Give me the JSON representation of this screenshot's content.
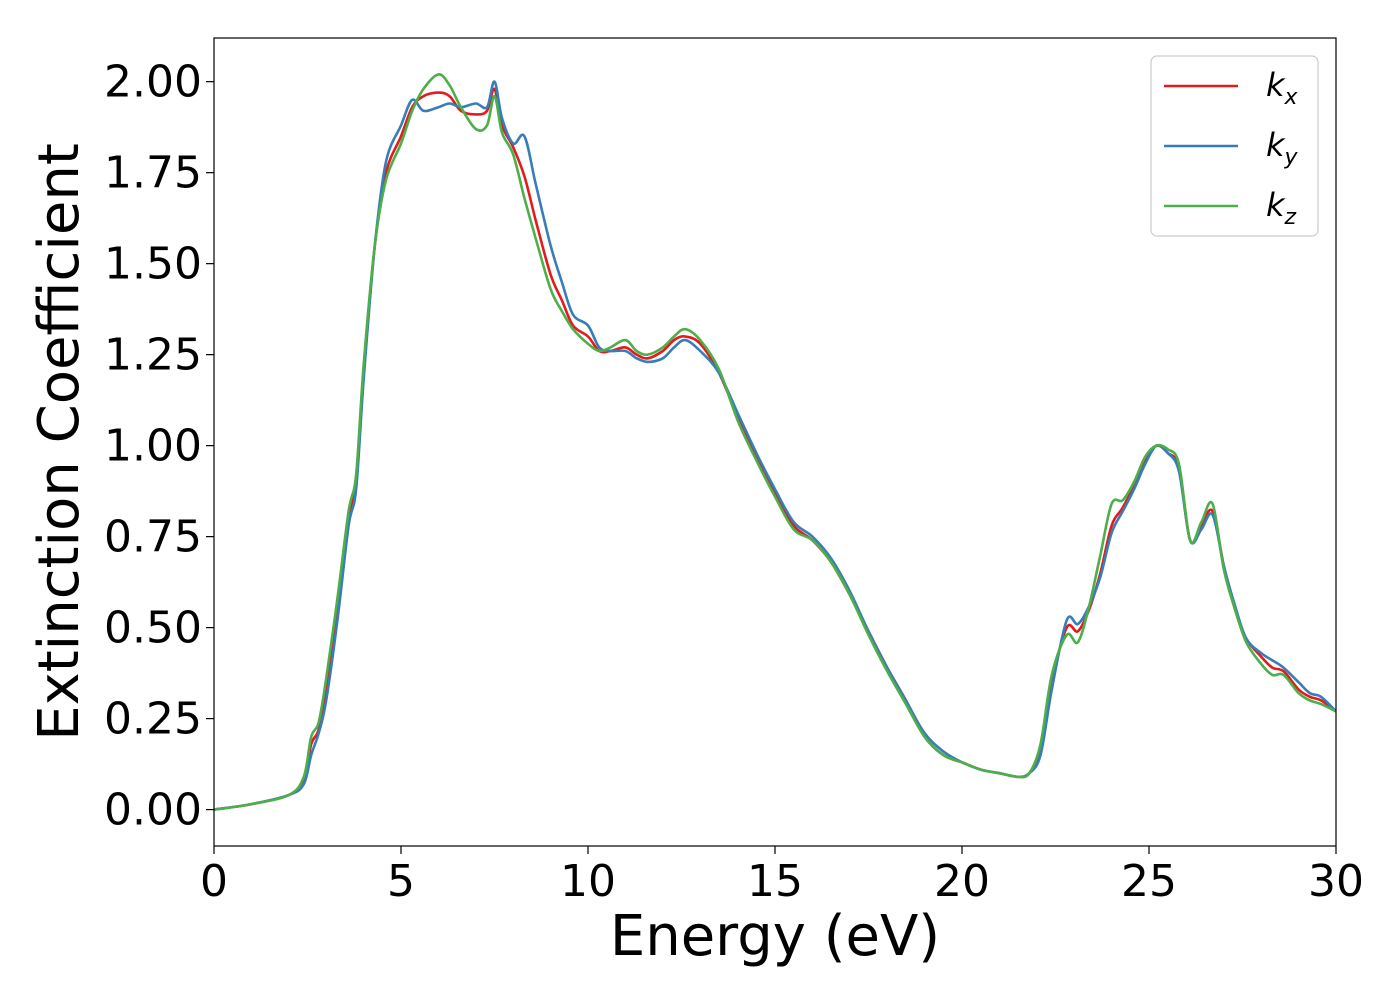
{
  "chart_data": {
    "type": "line",
    "xlabel": "Energy (eV)",
    "ylabel": "Extinction Coefficient",
    "xlim": [
      0,
      30
    ],
    "ylim": [
      -0.1,
      2.12
    ],
    "xticks": [
      "0",
      "5",
      "10",
      "15",
      "20",
      "25",
      "30"
    ],
    "yticks": [
      "0.00",
      "0.25",
      "0.50",
      "0.75",
      "1.00",
      "1.25",
      "1.50",
      "1.75",
      "2.00"
    ],
    "legend_position": "top-right",
    "grid": false,
    "series": [
      {
        "name": "k_x",
        "label_main": "k",
        "label_sub": "x",
        "color": "#e41a1c",
        "x": [
          0,
          1,
          2,
          2.4,
          2.6,
          2.8,
          3.0,
          3.3,
          3.6,
          3.8,
          4.0,
          4.3,
          4.6,
          5.0,
          5.3,
          5.6,
          6.0,
          6.3,
          6.6,
          7.0,
          7.3,
          7.5,
          7.7,
          8.0,
          8.3,
          8.6,
          9.0,
          9.3,
          9.6,
          10.0,
          10.3,
          10.6,
          11.0,
          11.3,
          11.6,
          12.0,
          12.3,
          12.6,
          13.0,
          13.5,
          14.0,
          14.5,
          15.0,
          15.5,
          16.0,
          16.5,
          17.0,
          17.5,
          18.0,
          18.5,
          19.0,
          19.5,
          20.0,
          20.5,
          21.0,
          21.5,
          21.8,
          22.1,
          22.4,
          22.8,
          23.1,
          23.4,
          23.7,
          24.0,
          24.3,
          24.6,
          24.9,
          25.2,
          25.5,
          25.8,
          26.1,
          26.4,
          26.7,
          27.0,
          27.3,
          27.6,
          28.0,
          28.3,
          28.6,
          29.0,
          29.3,
          29.6,
          30.0
        ],
        "y": [
          0.0,
          0.015,
          0.04,
          0.08,
          0.18,
          0.22,
          0.33,
          0.55,
          0.8,
          0.9,
          1.2,
          1.55,
          1.75,
          1.85,
          1.93,
          1.96,
          1.97,
          1.96,
          1.92,
          1.91,
          1.92,
          1.98,
          1.88,
          1.82,
          1.74,
          1.62,
          1.47,
          1.4,
          1.33,
          1.3,
          1.26,
          1.26,
          1.27,
          1.25,
          1.24,
          1.26,
          1.29,
          1.3,
          1.28,
          1.2,
          1.08,
          0.97,
          0.87,
          0.78,
          0.74,
          0.68,
          0.59,
          0.49,
          0.39,
          0.3,
          0.2,
          0.15,
          0.13,
          0.11,
          0.1,
          0.09,
          0.1,
          0.17,
          0.35,
          0.5,
          0.49,
          0.55,
          0.65,
          0.78,
          0.83,
          0.89,
          0.96,
          1.0,
          0.98,
          0.94,
          0.74,
          0.78,
          0.82,
          0.67,
          0.55,
          0.47,
          0.42,
          0.39,
          0.38,
          0.33,
          0.31,
          0.3,
          0.27
        ]
      },
      {
        "name": "k_y",
        "label_main": "k",
        "label_sub": "y",
        "color": "#377eb8",
        "x": [
          0,
          1,
          2,
          2.4,
          2.6,
          2.8,
          3.0,
          3.3,
          3.6,
          3.8,
          4.0,
          4.3,
          4.6,
          5.0,
          5.3,
          5.6,
          6.0,
          6.3,
          6.6,
          7.0,
          7.3,
          7.5,
          7.7,
          8.0,
          8.3,
          8.6,
          9.0,
          9.3,
          9.6,
          10.0,
          10.3,
          10.6,
          11.0,
          11.3,
          11.6,
          12.0,
          12.3,
          12.6,
          13.0,
          13.5,
          14.0,
          14.5,
          15.0,
          15.5,
          16.0,
          16.5,
          17.0,
          17.5,
          18.0,
          18.5,
          19.0,
          19.5,
          20.0,
          20.5,
          21.0,
          21.5,
          21.8,
          22.1,
          22.4,
          22.8,
          23.1,
          23.4,
          23.7,
          24.0,
          24.3,
          24.6,
          24.9,
          25.2,
          25.5,
          25.8,
          26.1,
          26.4,
          26.7,
          27.0,
          27.3,
          27.6,
          28.0,
          28.3,
          28.6,
          29.0,
          29.3,
          29.6,
          30.0
        ],
        "y": [
          0.0,
          0.015,
          0.04,
          0.07,
          0.15,
          0.21,
          0.3,
          0.52,
          0.78,
          0.88,
          1.18,
          1.55,
          1.78,
          1.88,
          1.95,
          1.92,
          1.93,
          1.94,
          1.93,
          1.94,
          1.93,
          2.0,
          1.9,
          1.83,
          1.85,
          1.72,
          1.55,
          1.45,
          1.36,
          1.33,
          1.27,
          1.26,
          1.26,
          1.24,
          1.23,
          1.24,
          1.27,
          1.29,
          1.26,
          1.2,
          1.09,
          0.98,
          0.88,
          0.79,
          0.75,
          0.69,
          0.6,
          0.49,
          0.39,
          0.3,
          0.21,
          0.16,
          0.13,
          0.11,
          0.1,
          0.09,
          0.1,
          0.15,
          0.33,
          0.52,
          0.51,
          0.56,
          0.64,
          0.76,
          0.82,
          0.88,
          0.95,
          1.0,
          0.98,
          0.93,
          0.74,
          0.77,
          0.81,
          0.67,
          0.56,
          0.47,
          0.43,
          0.41,
          0.39,
          0.35,
          0.32,
          0.31,
          0.27
        ]
      },
      {
        "name": "k_z",
        "label_main": "k",
        "label_sub": "z",
        "color": "#4daf4a",
        "x": [
          0,
          1,
          2,
          2.4,
          2.6,
          2.8,
          3.0,
          3.3,
          3.6,
          3.8,
          4.0,
          4.3,
          4.6,
          5.0,
          5.3,
          5.6,
          6.0,
          6.3,
          6.6,
          7.0,
          7.3,
          7.5,
          7.7,
          8.0,
          8.3,
          8.6,
          9.0,
          9.3,
          9.6,
          10.0,
          10.3,
          10.6,
          11.0,
          11.3,
          11.6,
          12.0,
          12.3,
          12.6,
          13.0,
          13.5,
          14.0,
          14.5,
          15.0,
          15.5,
          16.0,
          16.5,
          17.0,
          17.5,
          18.0,
          18.5,
          19.0,
          19.5,
          20.0,
          20.5,
          21.0,
          21.5,
          21.8,
          22.1,
          22.4,
          22.8,
          23.1,
          23.4,
          23.7,
          24.0,
          24.3,
          24.6,
          24.9,
          25.2,
          25.5,
          25.8,
          26.1,
          26.4,
          26.7,
          27.0,
          27.3,
          27.6,
          28.0,
          28.3,
          28.6,
          29.0,
          29.3,
          29.6,
          30.0
        ],
        "y": [
          0.0,
          0.015,
          0.04,
          0.09,
          0.2,
          0.24,
          0.36,
          0.58,
          0.82,
          0.92,
          1.22,
          1.55,
          1.73,
          1.83,
          1.92,
          1.98,
          2.02,
          1.99,
          1.93,
          1.87,
          1.88,
          1.96,
          1.86,
          1.8,
          1.68,
          1.57,
          1.43,
          1.37,
          1.32,
          1.28,
          1.26,
          1.27,
          1.29,
          1.26,
          1.25,
          1.27,
          1.3,
          1.32,
          1.29,
          1.21,
          1.07,
          0.96,
          0.86,
          0.77,
          0.74,
          0.68,
          0.59,
          0.48,
          0.38,
          0.29,
          0.2,
          0.15,
          0.13,
          0.11,
          0.1,
          0.09,
          0.1,
          0.18,
          0.37,
          0.48,
          0.46,
          0.56,
          0.7,
          0.84,
          0.85,
          0.9,
          0.97,
          1.0,
          0.99,
          0.95,
          0.74,
          0.79,
          0.84,
          0.66,
          0.55,
          0.46,
          0.4,
          0.37,
          0.37,
          0.32,
          0.3,
          0.29,
          0.27
        ]
      }
    ]
  }
}
